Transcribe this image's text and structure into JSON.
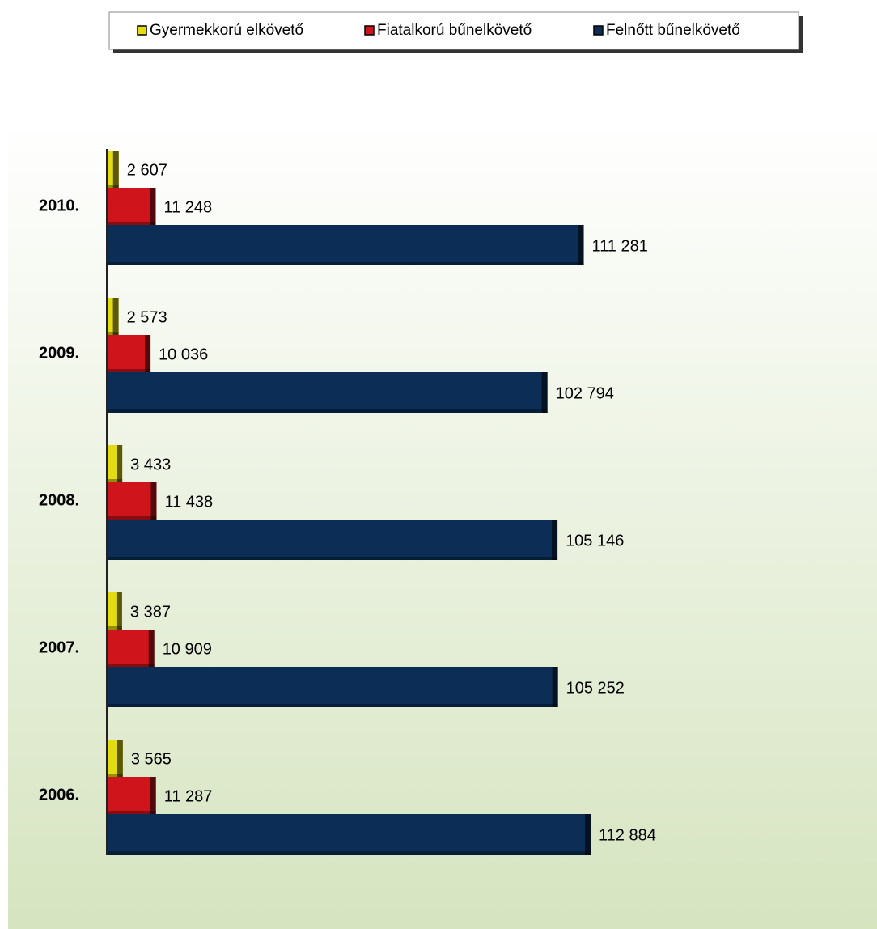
{
  "chart_data": {
    "type": "hbar",
    "categories": [
      "2010.",
      "2009.",
      "2008.",
      "2007.",
      "2006."
    ],
    "series": [
      {
        "name": "Gyermekkorú elkövető",
        "color": "#e4dc12",
        "values": [
          2607,
          2573,
          3433,
          3387,
          3565
        ],
        "value_labels": [
          "2 607",
          "2 573",
          "3 433",
          "3 387",
          "3 565"
        ]
      },
      {
        "name": "Fiatalkorú bűnelkövető",
        "color": "#d0141c",
        "values": [
          11248,
          10036,
          11438,
          10909,
          11287
        ],
        "value_labels": [
          "11 248",
          "10 036",
          "11 438",
          "10 909",
          "11 287"
        ]
      },
      {
        "name": "Felnőtt bűnelkövető",
        "color": "#0c2e56",
        "values": [
          111281,
          102794,
          105146,
          105252,
          112884
        ],
        "value_labels": [
          "111 281",
          "102 794",
          "105 146",
          "105 252",
          "112 884"
        ]
      }
    ],
    "legend": "top"
  }
}
